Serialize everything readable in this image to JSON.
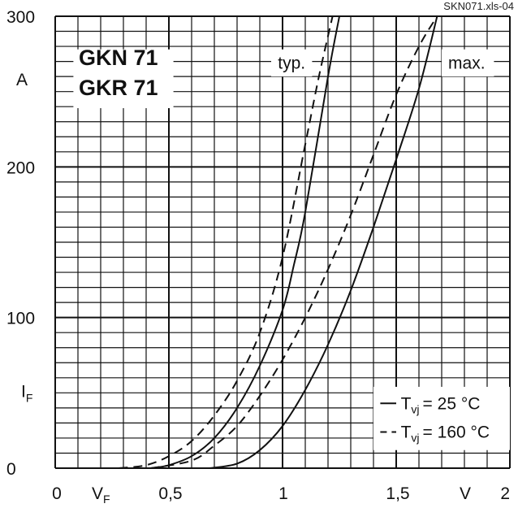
{
  "chart_data": {
    "type": "line",
    "file_ref": "SKN071.xls-04",
    "title_lines": [
      "GKN 71",
      "GKR 71"
    ],
    "xlabel": "V",
    "xlabel_sub": "F",
    "ylabel": "I",
    "ylabel_sub": "F",
    "x_unit": "V",
    "y_unit": "A",
    "xlim": [
      0,
      2
    ],
    "ylim": [
      0,
      300
    ],
    "x_ticks": [
      {
        "value": 0,
        "label": "0"
      },
      {
        "value": 0.5,
        "label": "0,5"
      },
      {
        "value": 1,
        "label": "1"
      },
      {
        "value": 1.5,
        "label": "1,5"
      },
      {
        "value": 2,
        "label": "2"
      }
    ],
    "y_ticks": [
      {
        "value": 0,
        "label": "0"
      },
      {
        "value": 100,
        "label": "100"
      },
      {
        "value": 200,
        "label": "200"
      },
      {
        "value": 300,
        "label": "300"
      }
    ],
    "grid": true,
    "annotations": {
      "typ": "typ.",
      "max": "max."
    },
    "legend": {
      "placement": "bottom-right",
      "items": [
        {
          "style": "solid",
          "prefix": "T",
          "sub": "vj",
          "value": "=   25 °C"
        },
        {
          "style": "dashed",
          "prefix": "T",
          "sub": "vj",
          "value": "= 160 °C"
        }
      ]
    },
    "series": [
      {
        "group": "typ.",
        "style": "dashed",
        "points": [
          [
            0.28,
            0
          ],
          [
            0.4,
            2
          ],
          [
            0.5,
            8
          ],
          [
            0.6,
            18
          ],
          [
            0.7,
            35
          ],
          [
            0.8,
            58
          ],
          [
            0.9,
            90
          ],
          [
            1.0,
            140
          ],
          [
            1.1,
            215
          ],
          [
            1.16,
            260
          ],
          [
            1.22,
            300
          ]
        ]
      },
      {
        "group": "typ.",
        "style": "solid",
        "points": [
          [
            0.42,
            0
          ],
          [
            0.5,
            2
          ],
          [
            0.6,
            8
          ],
          [
            0.7,
            20
          ],
          [
            0.8,
            40
          ],
          [
            0.9,
            68
          ],
          [
            1.0,
            105
          ],
          [
            1.05,
            135
          ],
          [
            1.1,
            170
          ],
          [
            1.2,
            260
          ],
          [
            1.25,
            300
          ]
        ]
      },
      {
        "group": "max.",
        "style": "dashed",
        "points": [
          [
            0.42,
            0
          ],
          [
            0.6,
            5
          ],
          [
            0.7,
            15
          ],
          [
            0.8,
            28
          ],
          [
            0.9,
            48
          ],
          [
            1.0,
            72
          ],
          [
            1.1,
            100
          ],
          [
            1.2,
            132
          ],
          [
            1.3,
            168
          ],
          [
            1.4,
            208
          ],
          [
            1.5,
            248
          ],
          [
            1.6,
            280
          ],
          [
            1.68,
            300
          ]
        ]
      },
      {
        "group": "max.",
        "style": "solid",
        "points": [
          [
            0.68,
            0
          ],
          [
            0.8,
            3
          ],
          [
            0.9,
            12
          ],
          [
            1.0,
            28
          ],
          [
            1.1,
            52
          ],
          [
            1.2,
            82
          ],
          [
            1.3,
            118
          ],
          [
            1.4,
            160
          ],
          [
            1.5,
            205
          ],
          [
            1.6,
            252
          ],
          [
            1.68,
            300
          ]
        ]
      }
    ]
  }
}
